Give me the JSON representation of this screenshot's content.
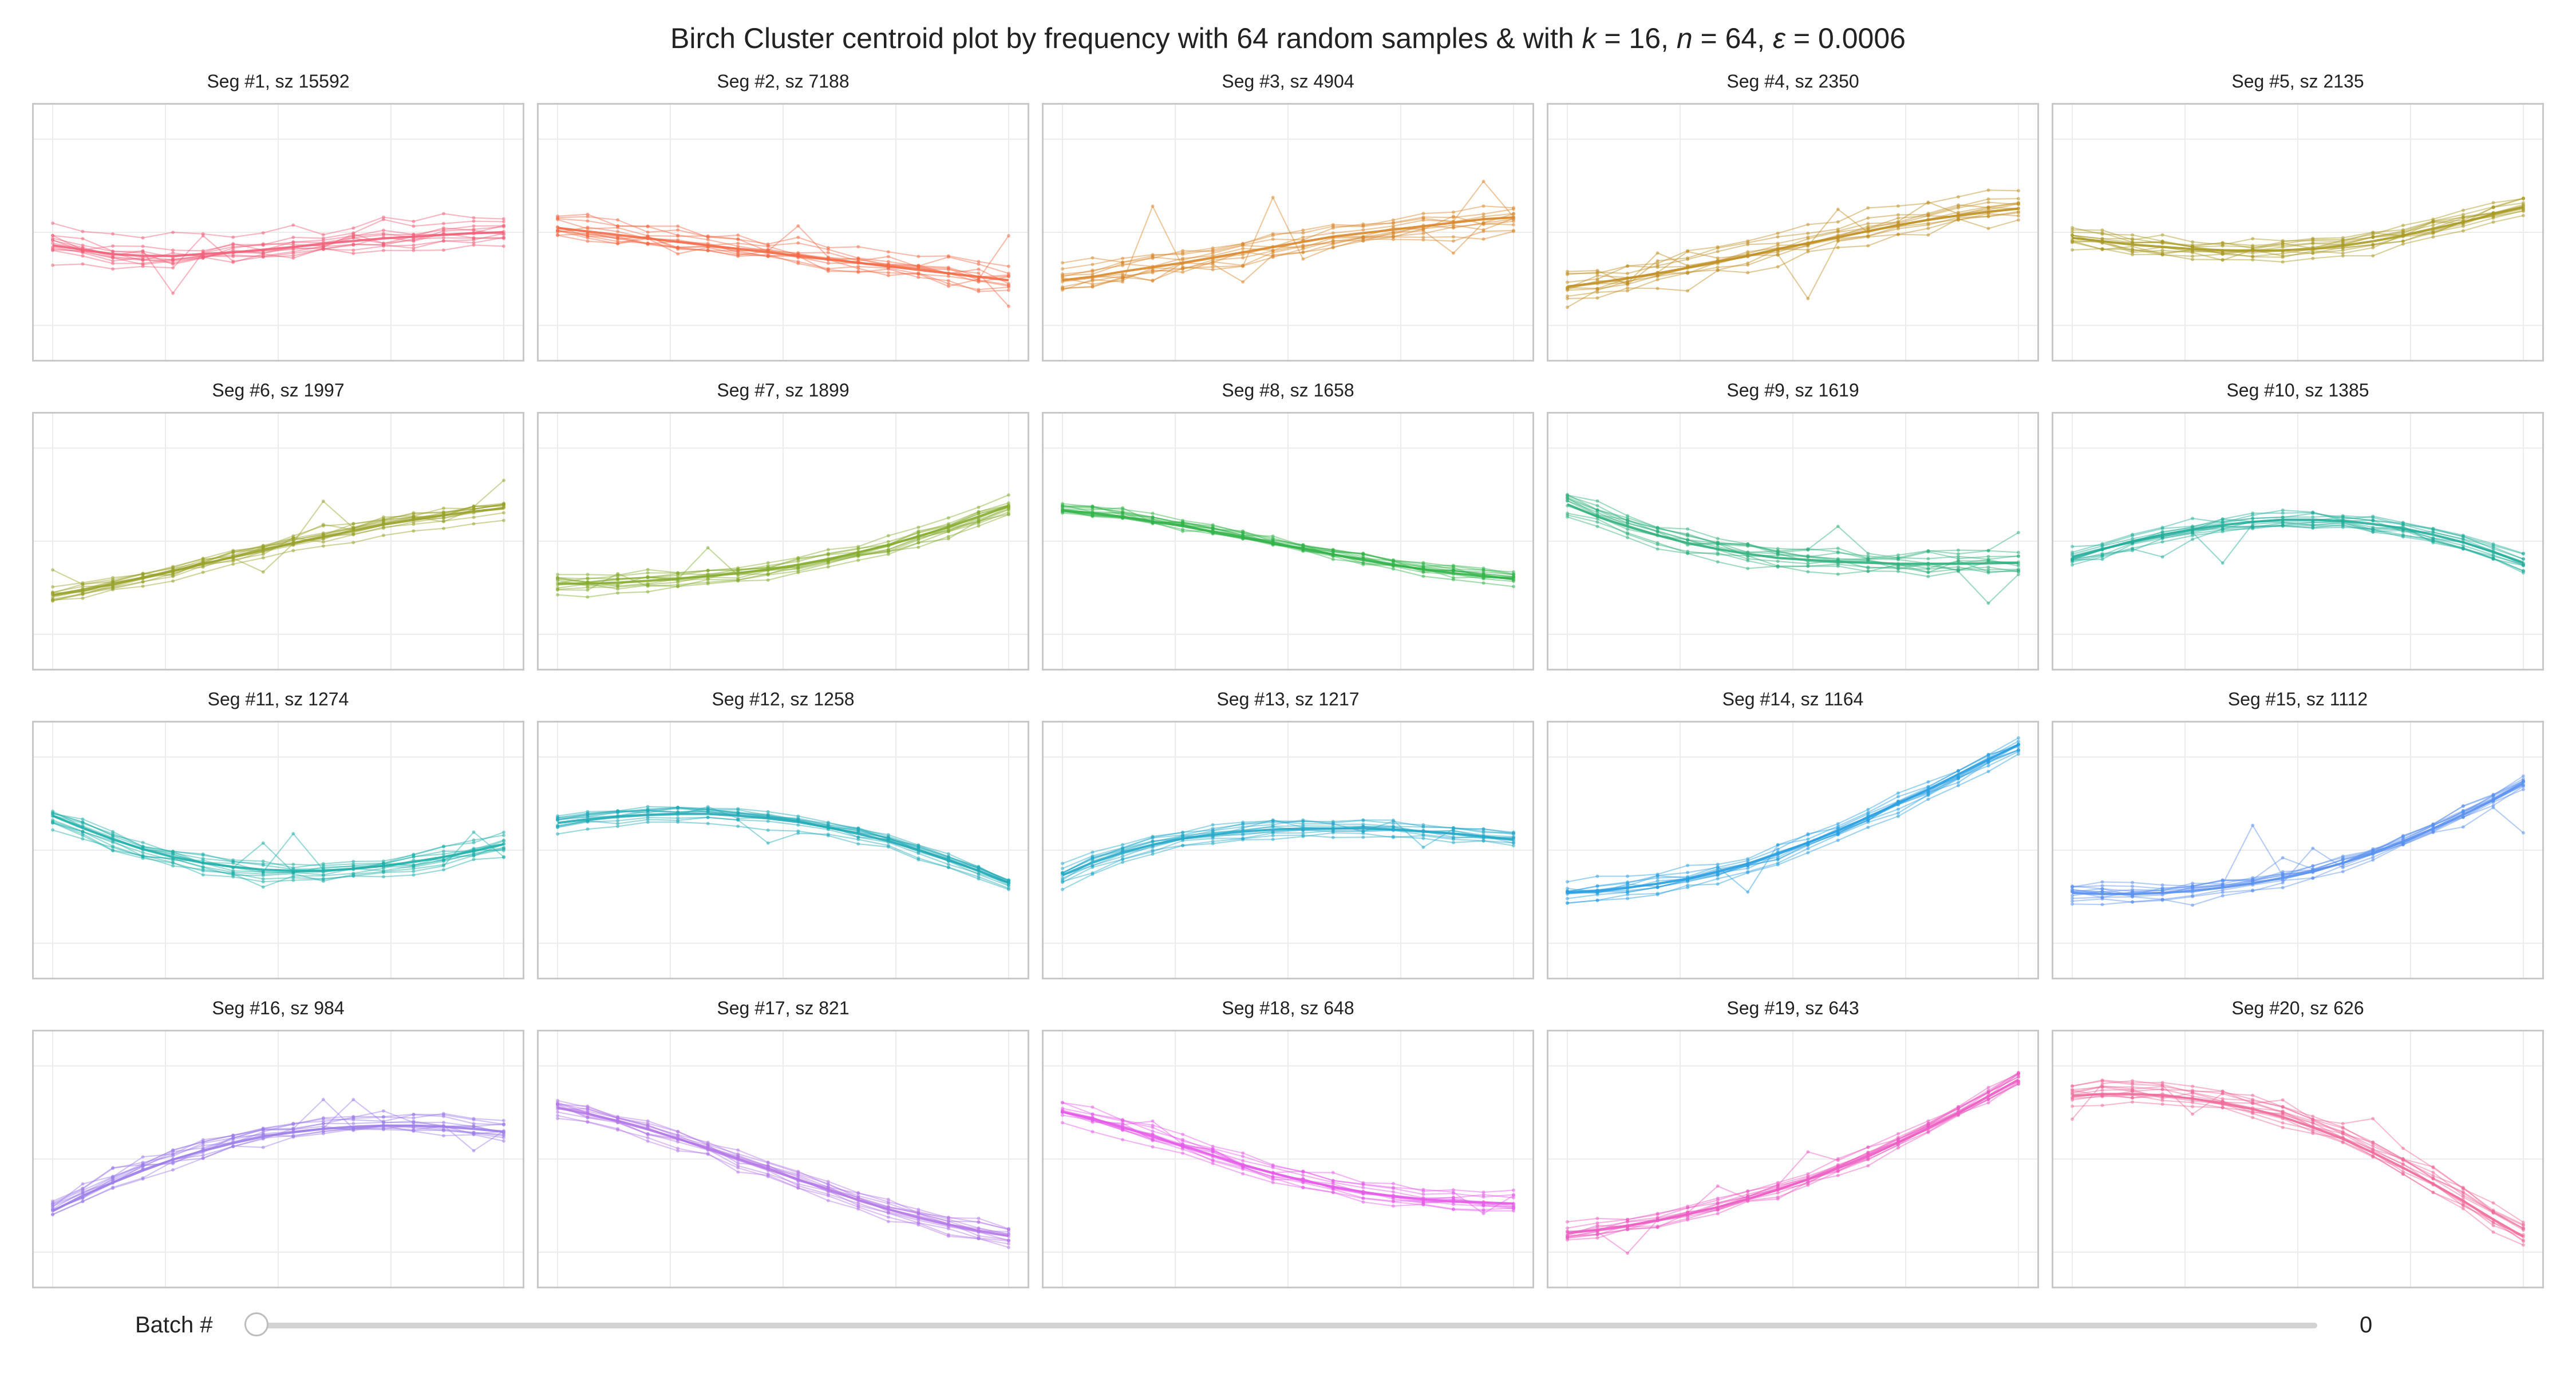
{
  "title": {
    "prefix": "Birch Cluster centroid plot by frequency with 64 random samples & with ",
    "k_sym": "k",
    "k_val": " = 16, ",
    "n_sym": "n",
    "n_val": " = 64, ",
    "eps_sym": "ε",
    "eps_val": " = 0.0006"
  },
  "slider": {
    "label": "Batch #",
    "value": "0",
    "position": 0
  },
  "chart_data": [
    {
      "type": "line",
      "title": "Seg #1, sz 15592",
      "color": "#f0607a",
      "x": [
        0,
        1,
        2,
        3,
        4,
        5,
        6,
        7,
        8,
        9,
        10,
        11,
        12,
        13,
        14,
        15
      ],
      "centroid": [
        0.0,
        -0.05,
        -0.1,
        -0.12,
        -0.12,
        -0.1,
        -0.08,
        -0.05,
        -0.02,
        0.02,
        0.05,
        0.08,
        0.1,
        0.12,
        0.14,
        0.15
      ],
      "spread": 0.15,
      "ylim": [
        -1.2,
        1.5
      ]
    },
    {
      "type": "line",
      "title": "Seg #2, sz 7188",
      "color": "#f26a46",
      "x": [
        0,
        1,
        2,
        3,
        4,
        5,
        6,
        7,
        8,
        9,
        10,
        11,
        12,
        13,
        14,
        15
      ],
      "centroid": [
        0.2,
        0.16,
        0.12,
        0.08,
        0.04,
        0.0,
        -0.04,
        -0.08,
        -0.12,
        -0.16,
        -0.2,
        -0.24,
        -0.28,
        -0.32,
        -0.36,
        -0.4
      ],
      "spread": 0.15,
      "ylim": [
        -1.2,
        1.5
      ]
    },
    {
      "type": "line",
      "title": "Seg #3, sz 4904",
      "color": "#d8882c",
      "x": [
        0,
        1,
        2,
        3,
        4,
        5,
        6,
        7,
        8,
        9,
        10,
        11,
        12,
        13,
        14,
        15
      ],
      "centroid": [
        -0.4,
        -0.36,
        -0.3,
        -0.25,
        -0.2,
        -0.14,
        -0.08,
        -0.02,
        0.04,
        0.1,
        0.14,
        0.18,
        0.22,
        0.26,
        0.3,
        0.32
      ],
      "spread": 0.15,
      "ylim": [
        -1.2,
        1.5
      ]
    },
    {
      "type": "line",
      "title": "Seg #4, sz 2350",
      "color": "#bf8f24",
      "x": [
        0,
        1,
        2,
        3,
        4,
        5,
        6,
        7,
        8,
        9,
        10,
        11,
        12,
        13,
        14,
        15
      ],
      "centroid": [
        -1.3,
        -1.2,
        -1.08,
        -0.95,
        -0.8,
        -0.64,
        -0.48,
        -0.3,
        -0.14,
        0.02,
        0.18,
        0.34,
        0.48,
        0.6,
        0.7,
        0.78
      ],
      "spread": 0.3,
      "ylim": [
        -3.0,
        3.3
      ]
    },
    {
      "type": "line",
      "title": "Seg #5, sz 2135",
      "color": "#a89a24",
      "x": [
        0,
        1,
        2,
        3,
        4,
        5,
        6,
        7,
        8,
        9,
        10,
        11,
        12,
        13,
        14,
        15
      ],
      "centroid": [
        0.0,
        -0.06,
        -0.12,
        -0.16,
        -0.2,
        -0.22,
        -0.23,
        -0.22,
        -0.2,
        -0.14,
        -0.06,
        0.04,
        0.16,
        0.28,
        0.42,
        0.55
      ],
      "spread": 0.18,
      "ylim": [
        -2.0,
        2.2
      ]
    },
    {
      "type": "line",
      "title": "Seg #6, sz 1997",
      "color": "#98a22a",
      "x": [
        0,
        1,
        2,
        3,
        4,
        5,
        6,
        7,
        8,
        9,
        10,
        11,
        12,
        13,
        14,
        15
      ],
      "centroid": [
        -1.35,
        -1.22,
        -1.06,
        -0.9,
        -0.72,
        -0.54,
        -0.36,
        -0.18,
        0.0,
        0.16,
        0.32,
        0.48,
        0.6,
        0.72,
        0.82,
        0.9
      ],
      "spread": 0.22,
      "ylim": [
        -3.0,
        3.1
      ]
    },
    {
      "type": "line",
      "title": "Seg #7, sz 1899",
      "color": "#84ab2e",
      "x": [
        0,
        1,
        2,
        3,
        4,
        5,
        6,
        7,
        8,
        9,
        10,
        11,
        12,
        13,
        14,
        15
      ],
      "centroid": [
        -0.7,
        -0.7,
        -0.68,
        -0.64,
        -0.6,
        -0.54,
        -0.48,
        -0.4,
        -0.3,
        -0.18,
        -0.04,
        0.12,
        0.3,
        0.5,
        0.72,
        0.95
      ],
      "spread": 0.18,
      "ylim": [
        -2.3,
        2.7
      ]
    },
    {
      "type": "line",
      "title": "Seg #8, sz 1658",
      "color": "#32b34a",
      "x": [
        0,
        1,
        2,
        3,
        4,
        5,
        6,
        7,
        8,
        9,
        10,
        11,
        12,
        13,
        14,
        15
      ],
      "centroid": [
        0.65,
        0.6,
        0.52,
        0.42,
        0.32,
        0.2,
        0.08,
        -0.04,
        -0.16,
        -0.28,
        -0.4,
        -0.5,
        -0.6,
        -0.68,
        -0.74,
        -0.8
      ],
      "spread": 0.18,
      "ylim": [
        -2.5,
        2.5
      ]
    },
    {
      "type": "line",
      "title": "Seg #9, sz 1619",
      "color": "#2fb07c",
      "x": [
        0,
        1,
        2,
        3,
        4,
        5,
        6,
        7,
        8,
        9,
        10,
        11,
        12,
        13,
        14,
        15
      ],
      "centroid": [
        0.75,
        0.5,
        0.3,
        0.12,
        -0.04,
        -0.16,
        -0.26,
        -0.34,
        -0.38,
        -0.42,
        -0.44,
        -0.46,
        -0.46,
        -0.46,
        -0.45,
        -0.44
      ],
      "spread": 0.22,
      "ylim": [
        -2.4,
        2.4
      ]
    },
    {
      "type": "line",
      "title": "Seg #10, sz 1385",
      "color": "#22ad99",
      "x": [
        0,
        1,
        2,
        3,
        4,
        5,
        6,
        7,
        8,
        9,
        10,
        11,
        12,
        13,
        14,
        15
      ],
      "centroid": [
        -0.3,
        -0.15,
        0.0,
        0.12,
        0.22,
        0.3,
        0.36,
        0.4,
        0.4,
        0.38,
        0.32,
        0.24,
        0.12,
        -0.02,
        -0.2,
        -0.4
      ],
      "spread": 0.16,
      "ylim": [
        -2.2,
        2.2
      ]
    },
    {
      "type": "line",
      "title": "Seg #11, sz 1274",
      "color": "#1fb0a8",
      "x": [
        0,
        1,
        2,
        3,
        4,
        5,
        6,
        7,
        8,
        9,
        10,
        11,
        12,
        13,
        14,
        15
      ],
      "centroid": [
        0.7,
        0.45,
        0.22,
        0.02,
        -0.14,
        -0.26,
        -0.34,
        -0.4,
        -0.42,
        -0.42,
        -0.38,
        -0.32,
        -0.24,
        -0.14,
        -0.02,
        0.12
      ],
      "spread": 0.2,
      "ylim": [
        -2.4,
        2.4
      ]
    },
    {
      "type": "line",
      "title": "Seg #12, sz 1258",
      "color": "#22aab5",
      "x": [
        0,
        1,
        2,
        3,
        4,
        5,
        6,
        7,
        8,
        9,
        10,
        11,
        12,
        13,
        14,
        15
      ],
      "centroid": [
        0.4,
        0.48,
        0.54,
        0.58,
        0.6,
        0.6,
        0.56,
        0.5,
        0.42,
        0.3,
        0.16,
        0.0,
        -0.2,
        -0.42,
        -0.66,
        -0.92
      ],
      "spread": 0.14,
      "ylim": [
        -2.8,
        2.4
      ]
    },
    {
      "type": "line",
      "title": "Seg #13, sz 1217",
      "color": "#25a8c8",
      "x": [
        0,
        1,
        2,
        3,
        4,
        5,
        6,
        7,
        8,
        9,
        10,
        11,
        12,
        13,
        14,
        15
      ],
      "centroid": [
        -0.55,
        -0.3,
        -0.1,
        0.06,
        0.18,
        0.26,
        0.32,
        0.36,
        0.38,
        0.38,
        0.38,
        0.36,
        0.32,
        0.28,
        0.22,
        0.16
      ],
      "spread": 0.14,
      "ylim": [
        -2.4,
        2.3
      ]
    },
    {
      "type": "line",
      "title": "Seg #14, sz 1164",
      "color": "#2a9fe0",
      "x": [
        0,
        1,
        2,
        3,
        4,
        5,
        6,
        7,
        8,
        9,
        10,
        11,
        12,
        13,
        14,
        15
      ],
      "centroid": [
        -1.0,
        -0.96,
        -0.9,
        -0.82,
        -0.72,
        -0.58,
        -0.42,
        -0.22,
        0.0,
        0.24,
        0.5,
        0.78,
        1.06,
        1.36,
        1.66,
        1.95
      ],
      "spread": 0.18,
      "ylim": [
        -2.5,
        2.2
      ]
    },
    {
      "type": "line",
      "title": "Seg #15, sz 1112",
      "color": "#5a90ee",
      "x": [
        0,
        1,
        2,
        3,
        4,
        5,
        6,
        7,
        8,
        9,
        10,
        11,
        12,
        13,
        14,
        15
      ],
      "centroid": [
        -0.6,
        -0.62,
        -0.62,
        -0.6,
        -0.56,
        -0.5,
        -0.42,
        -0.32,
        -0.2,
        -0.04,
        0.14,
        0.36,
        0.6,
        0.86,
        1.14,
        1.45
      ],
      "spread": 0.16,
      "ylim": [
        -2.0,
        2.4
      ]
    },
    {
      "type": "line",
      "title": "Seg #16, sz 984",
      "color": "#9b7de8",
      "x": [
        0,
        1,
        2,
        3,
        4,
        5,
        6,
        7,
        8,
        9,
        10,
        11,
        12,
        13,
        14,
        15
      ],
      "centroid": [
        -0.9,
        -0.62,
        -0.38,
        -0.16,
        0.04,
        0.2,
        0.34,
        0.46,
        0.54,
        0.6,
        0.64,
        0.66,
        0.66,
        0.64,
        0.6,
        0.55
      ],
      "spread": 0.2,
      "ylim": [
        -2.1,
        2.2
      ]
    },
    {
      "type": "line",
      "title": "Seg #17, sz 821",
      "color": "#b377e6",
      "x": [
        0,
        1,
        2,
        3,
        4,
        5,
        6,
        7,
        8,
        9,
        10,
        11,
        12,
        13,
        14,
        15
      ],
      "centroid": [
        1.3,
        1.18,
        1.04,
        0.88,
        0.7,
        0.5,
        0.3,
        0.1,
        -0.1,
        -0.3,
        -0.5,
        -0.68,
        -0.84,
        -0.98,
        -1.1,
        -1.2
      ],
      "spread": 0.18,
      "ylim": [
        -2.0,
        2.6
      ]
    },
    {
      "type": "line",
      "title": "Seg #18, sz 648",
      "color": "#e45ce8",
      "x": [
        0,
        1,
        2,
        3,
        4,
        5,
        6,
        7,
        8,
        9,
        10,
        11,
        12,
        13,
        14,
        15
      ],
      "centroid": [
        1.05,
        0.92,
        0.76,
        0.58,
        0.4,
        0.22,
        0.04,
        -0.12,
        -0.26,
        -0.38,
        -0.48,
        -0.56,
        -0.62,
        -0.66,
        -0.68,
        -0.7
      ],
      "spread": 0.16,
      "ylim": [
        -2.1,
        2.4
      ]
    },
    {
      "type": "line",
      "title": "Seg #19, sz 643",
      "color": "#ec5cc2",
      "x": [
        0,
        1,
        2,
        3,
        4,
        5,
        6,
        7,
        8,
        9,
        10,
        11,
        12,
        13,
        14,
        15
      ],
      "centroid": [
        -1.35,
        -1.28,
        -1.2,
        -1.1,
        -0.98,
        -0.84,
        -0.68,
        -0.5,
        -0.3,
        -0.08,
        0.16,
        0.42,
        0.7,
        1.0,
        1.32,
        1.65
      ],
      "spread": 0.16,
      "ylim": [
        -2.2,
        2.4
      ]
    },
    {
      "type": "line",
      "title": "Seg #20, sz 626",
      "color": "#ee6a9a",
      "x": [
        0,
        1,
        2,
        3,
        4,
        5,
        6,
        7,
        8,
        9,
        10,
        11,
        12,
        13,
        14,
        15
      ],
      "centroid": [
        0.75,
        0.78,
        0.78,
        0.76,
        0.7,
        0.62,
        0.52,
        0.38,
        0.2,
        0.0,
        -0.24,
        -0.5,
        -0.78,
        -1.08,
        -1.4,
        -1.7
      ],
      "spread": 0.2,
      "ylim": [
        -2.4,
        1.7
      ]
    }
  ]
}
